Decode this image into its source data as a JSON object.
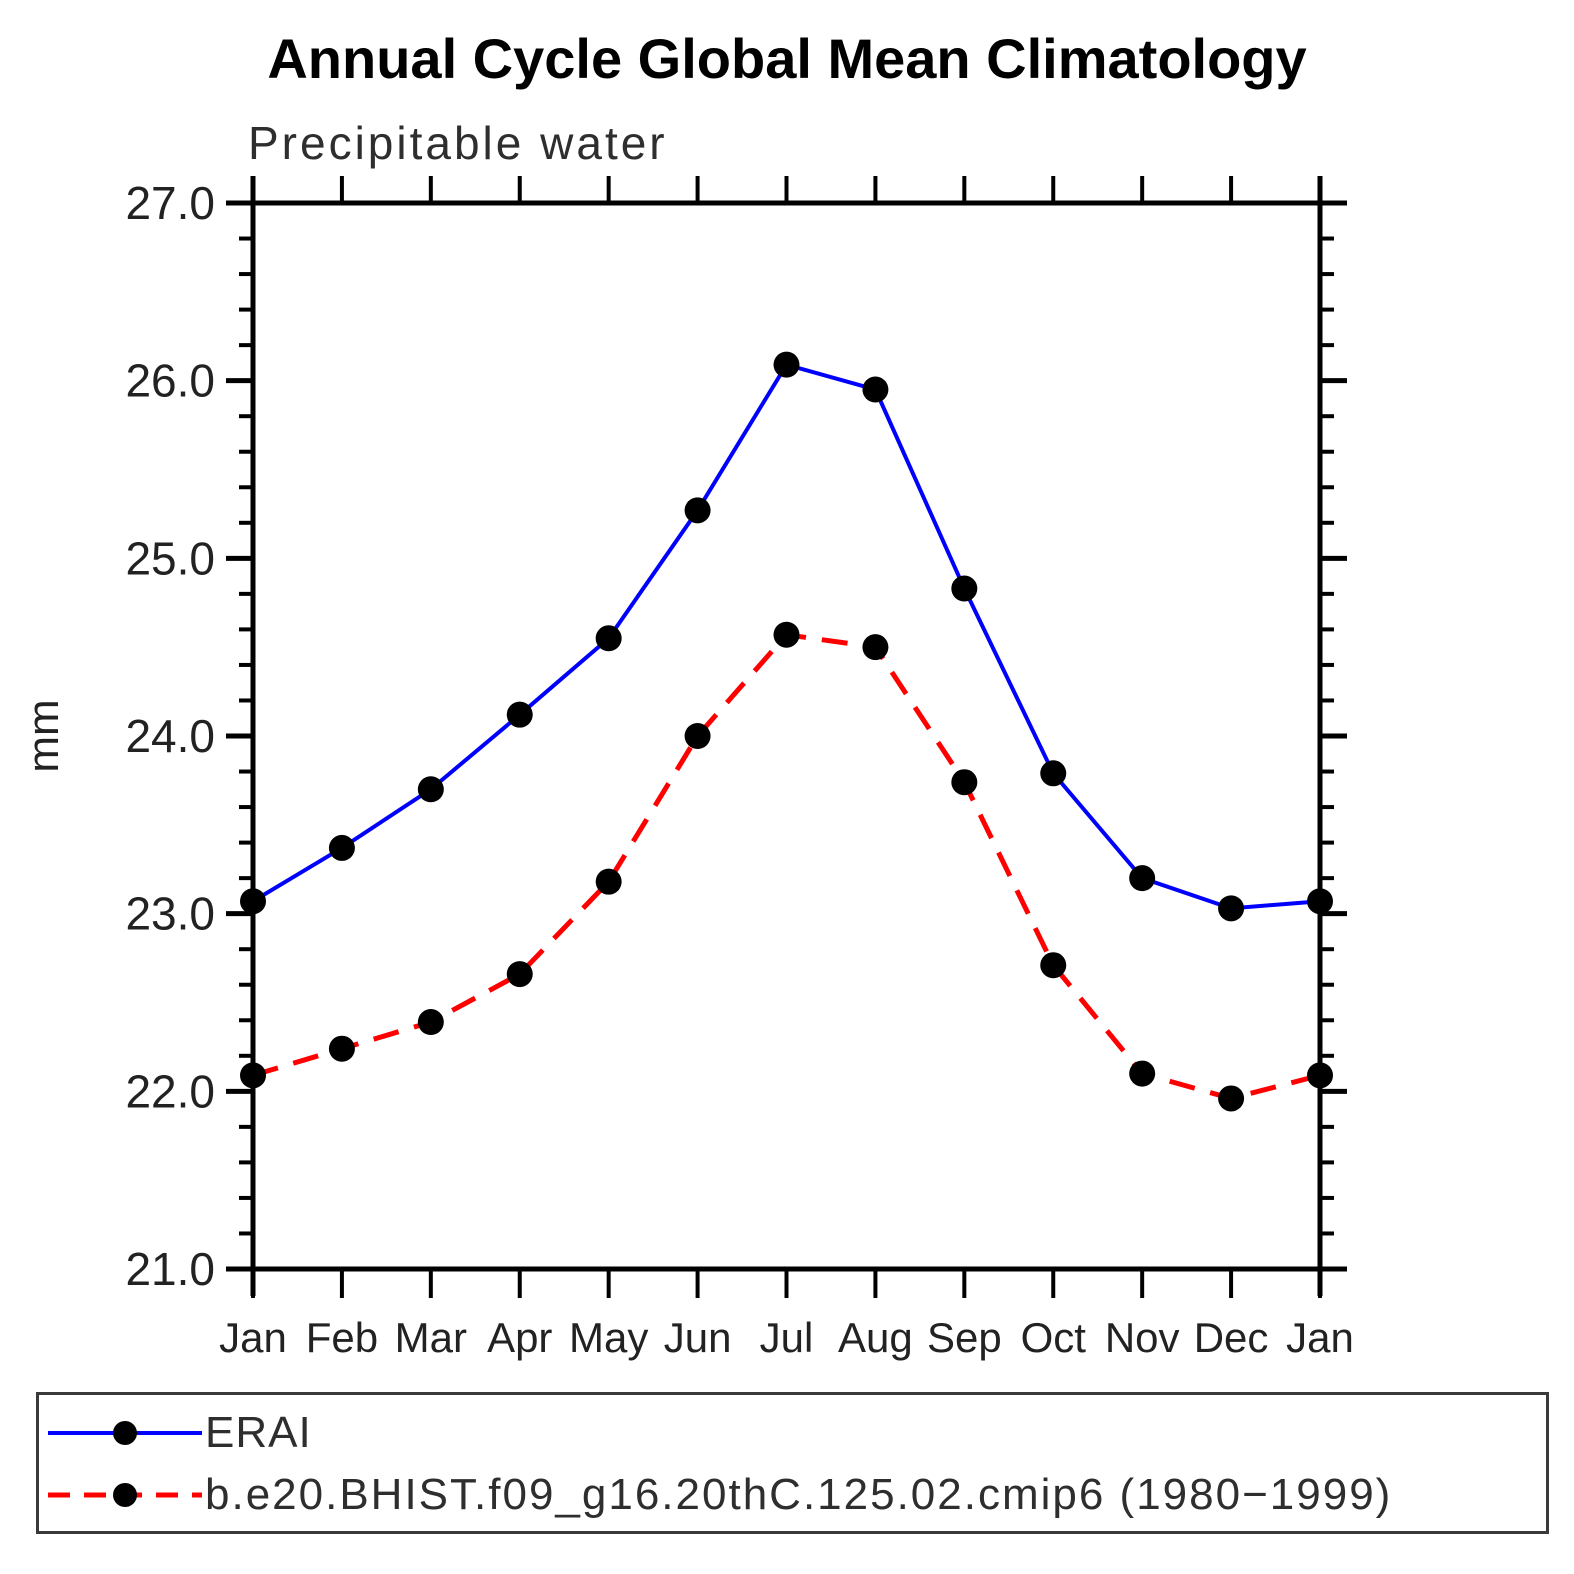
{
  "page": {
    "background": "#ffffff"
  },
  "chart_data": {
    "type": "line",
    "title": "Annual Cycle Global Mean Climatology",
    "subtitle": "Precipitable water",
    "ylabel": "mm",
    "xlabel": "",
    "categories": [
      "Jan",
      "Feb",
      "Mar",
      "Apr",
      "May",
      "Jun",
      "Jul",
      "Aug",
      "Sep",
      "Oct",
      "Nov",
      "Dec",
      "Jan"
    ],
    "ylim": [
      21.0,
      27.0
    ],
    "ytick_step": 1.0,
    "ytick_minor_step": 0.2,
    "ytick_labels": [
      "21.0",
      "22.0",
      "23.0",
      "24.0",
      "25.0",
      "26.0",
      "27.0"
    ],
    "grid": false,
    "legend_position": "bottom-box",
    "axis_color": "#000000",
    "series": [
      {
        "name": "ERAI",
        "color": "#0000ff",
        "line_style": "solid",
        "marker": "circle",
        "marker_color": "#000000",
        "values": [
          23.07,
          23.37,
          23.7,
          24.12,
          24.55,
          25.27,
          26.09,
          25.95,
          24.83,
          23.79,
          23.2,
          23.03,
          23.07
        ]
      },
      {
        "name": "b.e20.BHIST.f09_g16.20thC.125.02.cmip6 (1980−1999)",
        "color": "#ff0000",
        "line_style": "dashed",
        "marker": "circle",
        "marker_color": "#000000",
        "values": [
          22.09,
          22.24,
          22.39,
          22.66,
          23.18,
          24.0,
          24.57,
          24.5,
          23.74,
          22.71,
          22.1,
          21.96,
          22.09
        ]
      }
    ]
  }
}
